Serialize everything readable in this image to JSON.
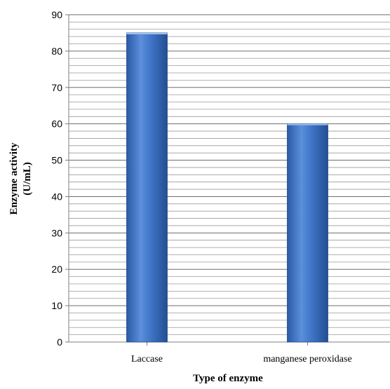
{
  "chart_data": {
    "type": "bar",
    "title": "",
    "categories": [
      "Laccase",
      "manganese peroxidase"
    ],
    "values": [
      85,
      60
    ],
    "xlabel": "Type of enzyme",
    "ylabel_line1": "Enzyme activity",
    "ylabel_line2": "(U/mL)",
    "ylim": [
      0,
      90
    ],
    "yticks": [
      "0",
      "10",
      "20",
      "30",
      "40",
      "50",
      "60",
      "70",
      "80",
      "90"
    ],
    "grid": true,
    "minor_grid_step": 2,
    "legend": "none",
    "bar_color": "#3a6fc0"
  }
}
